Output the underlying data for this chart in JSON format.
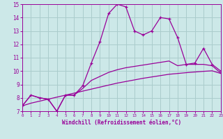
{
  "xlabel": "Windchill (Refroidissement éolien,°C)",
  "x": [
    0,
    1,
    2,
    3,
    4,
    5,
    6,
    7,
    8,
    9,
    10,
    11,
    12,
    13,
    14,
    15,
    16,
    17,
    18,
    19,
    20,
    21,
    22,
    23
  ],
  "line1_y": [
    7.4,
    8.2,
    8.0,
    7.9,
    7.0,
    8.2,
    8.2,
    8.9,
    10.6,
    12.2,
    14.3,
    15.0,
    14.8,
    13.0,
    12.7,
    13.0,
    14.0,
    13.9,
    12.5,
    10.5,
    10.6,
    11.7,
    10.5,
    10.0
  ],
  "line2_y": [
    7.4,
    8.2,
    8.0,
    7.9,
    7.0,
    8.2,
    8.2,
    8.7,
    9.3,
    9.6,
    9.9,
    10.1,
    10.25,
    10.35,
    10.45,
    10.55,
    10.65,
    10.75,
    10.4,
    10.5,
    10.5,
    10.5,
    10.4,
    9.85
  ],
  "line3_y": [
    7.4,
    7.6,
    7.75,
    7.9,
    8.05,
    8.2,
    8.35,
    8.5,
    8.65,
    8.8,
    8.95,
    9.1,
    9.22,
    9.34,
    9.46,
    9.56,
    9.66,
    9.76,
    9.82,
    9.88,
    9.93,
    9.98,
    10.02,
    9.82
  ],
  "line_color": "#990099",
  "bg_color": "#cce8e8",
  "grid_color": "#aacccc",
  "xlim": [
    0,
    23
  ],
  "ylim": [
    7,
    15
  ],
  "yticks": [
    7,
    8,
    9,
    10,
    11,
    12,
    13,
    14,
    15
  ],
  "xticks": [
    0,
    1,
    2,
    3,
    4,
    5,
    6,
    7,
    8,
    9,
    10,
    11,
    12,
    13,
    14,
    15,
    16,
    17,
    18,
    19,
    20,
    21,
    22,
    23
  ],
  "marker": "+"
}
